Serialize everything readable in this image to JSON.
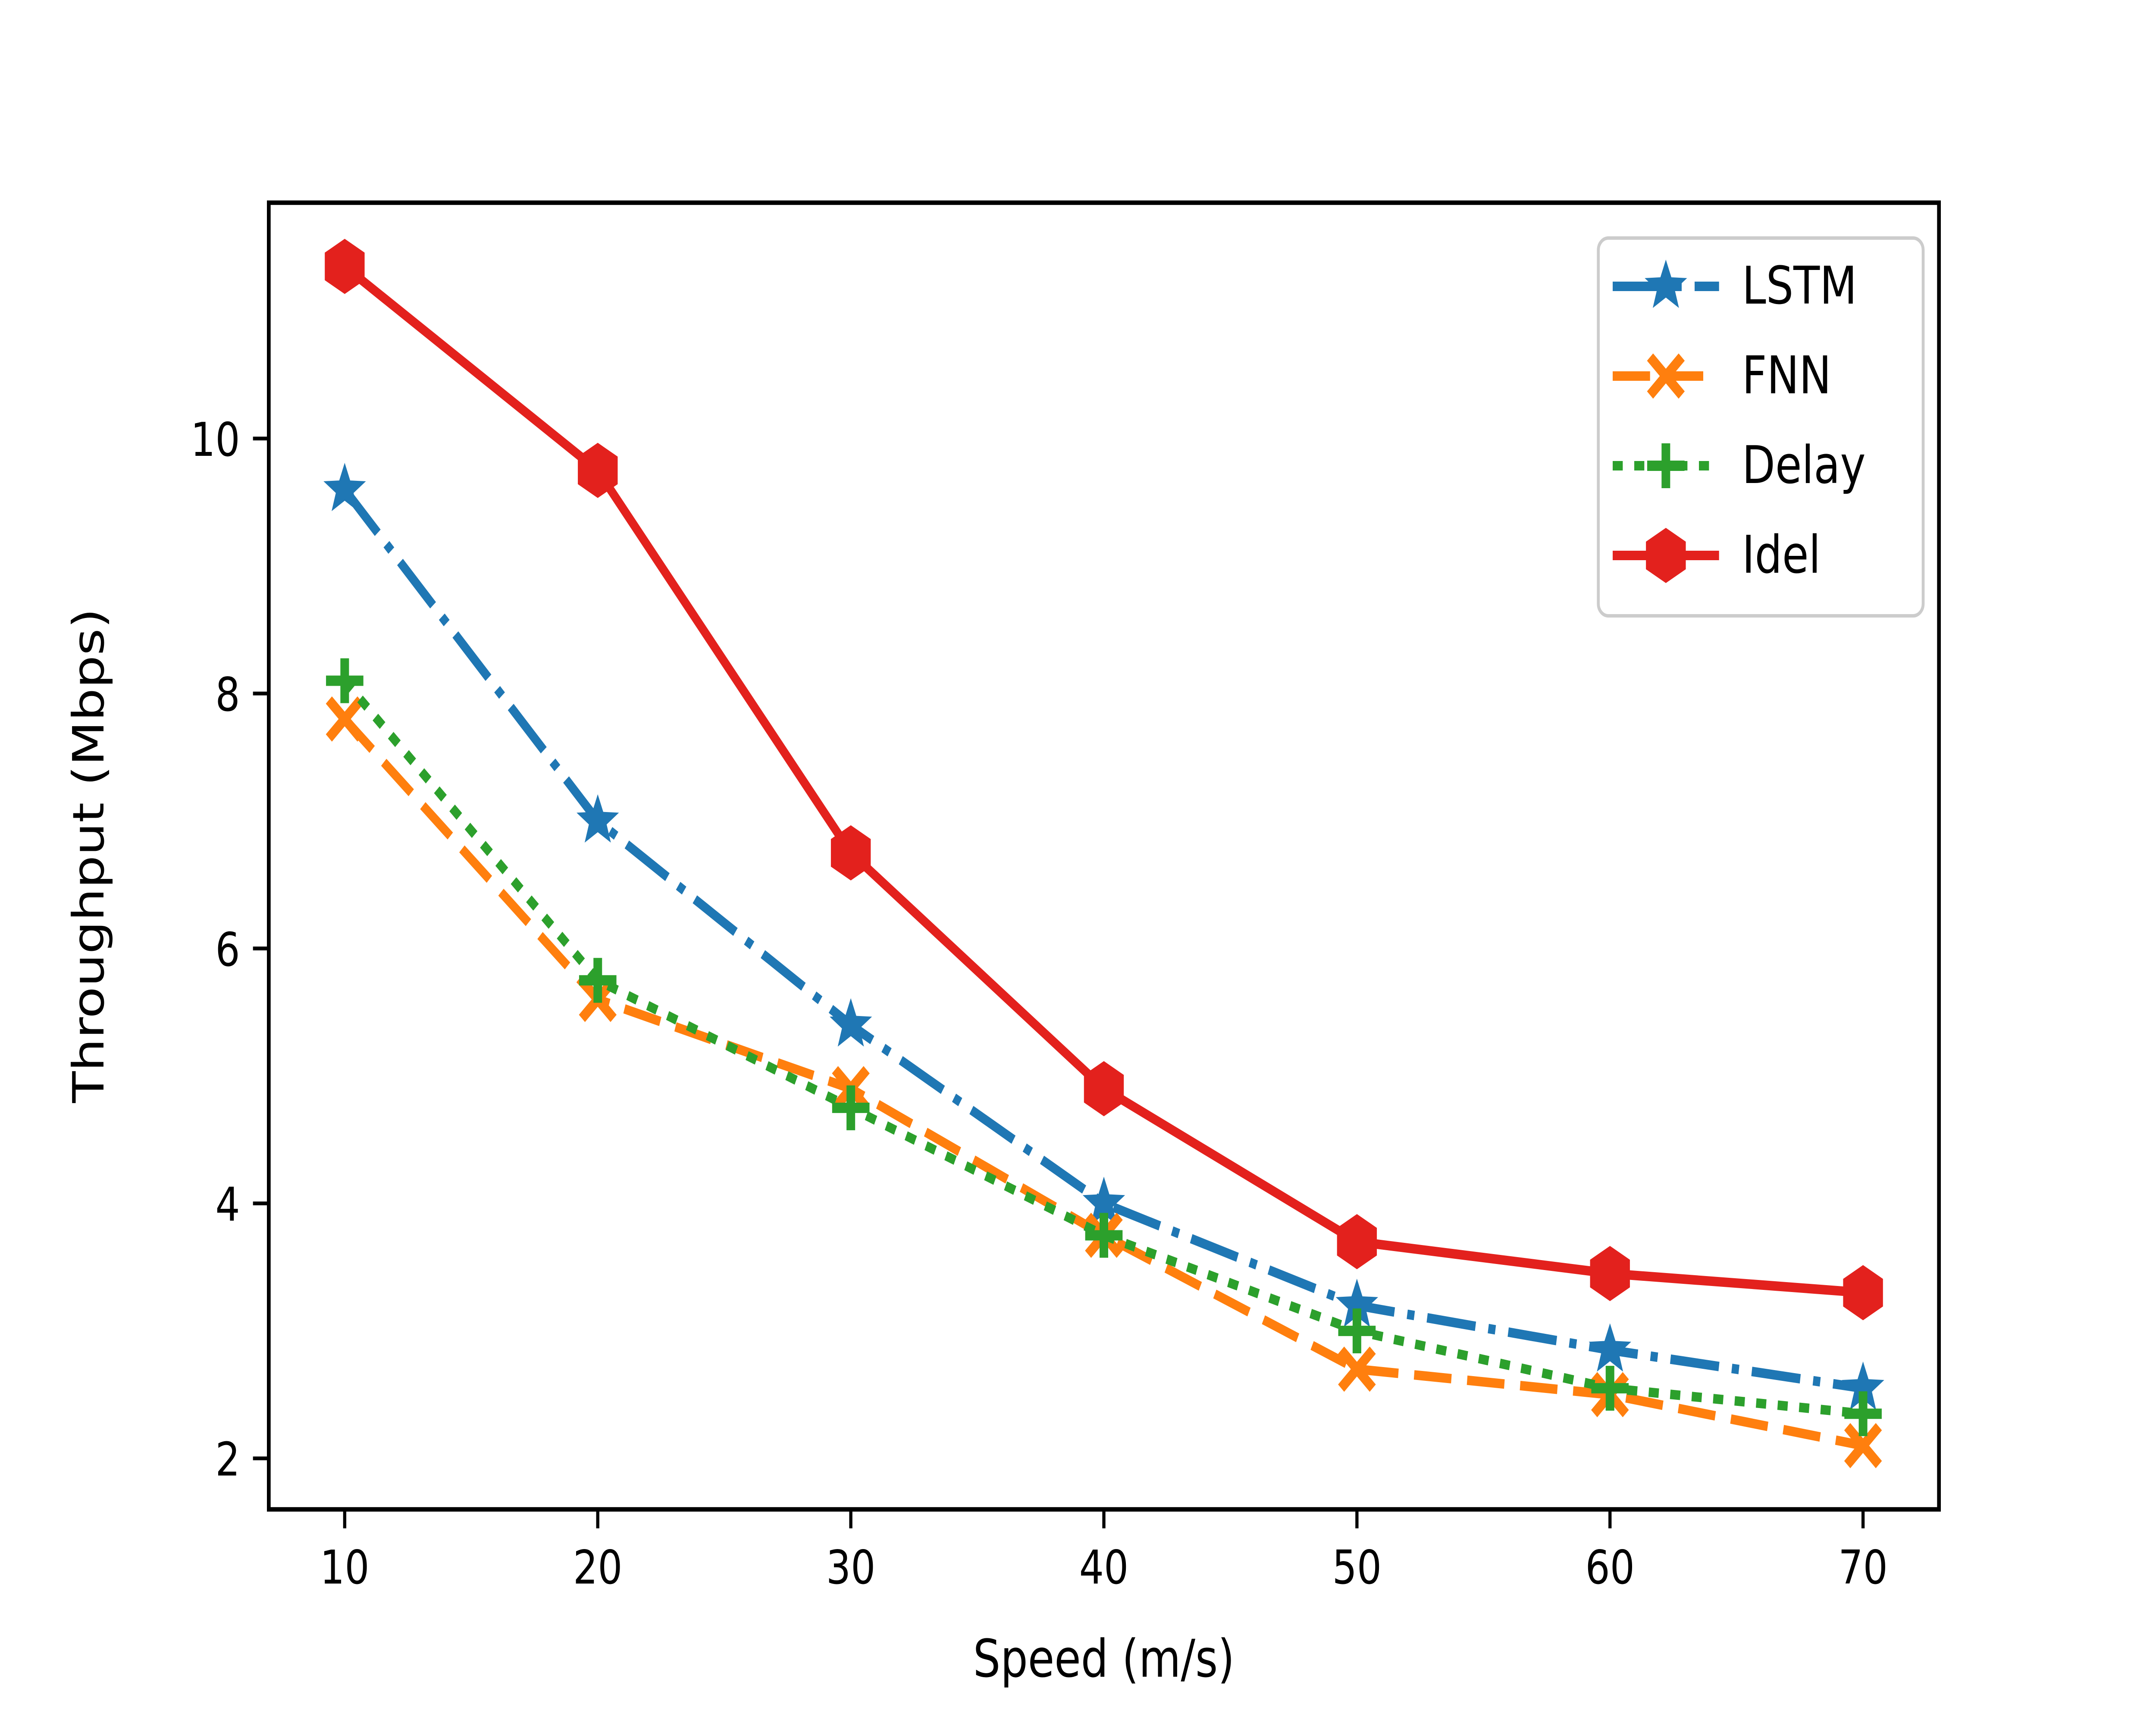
{
  "chart_data": {
    "type": "line",
    "title": "",
    "xlabel": "Speed (m/s)",
    "ylabel": "Throughput (Mbps)",
    "x": [
      10,
      20,
      30,
      40,
      50,
      60,
      70
    ],
    "series": [
      {
        "name": "LSTM",
        "color": "#1f77b4",
        "linestyle": "dashdot",
        "marker": "star",
        "values": [
          9.6,
          7.0,
          5.4,
          4.0,
          3.2,
          2.85,
          2.55
        ]
      },
      {
        "name": "FNN",
        "color": "#ff7f0e",
        "linestyle": "dashed",
        "marker": "x",
        "values": [
          7.8,
          5.6,
          4.9,
          3.75,
          2.7,
          2.5,
          2.1
        ]
      },
      {
        "name": "Delay",
        "color": "#2ca02c",
        "linestyle": "dotted",
        "marker": "plus",
        "values": [
          8.1,
          5.75,
          4.75,
          3.75,
          3.0,
          2.55,
          2.35
        ]
      },
      {
        "name": "Idel",
        "color": "#e3211d",
        "linestyle": "solid",
        "marker": "hexagon",
        "values": [
          11.35,
          9.75,
          6.75,
          4.9,
          3.7,
          3.45,
          3.3
        ]
      }
    ],
    "xticks": [
      10,
      20,
      30,
      40,
      50,
      60,
      70
    ],
    "yticks": [
      2,
      4,
      6,
      8,
      10
    ],
    "xlim": [
      7,
      73
    ],
    "ylim": [
      1.6,
      11.85
    ],
    "grid": false,
    "legend_position": "upper right",
    "axis_color": "#000000",
    "background_color": "#ffffff",
    "legend_frame_color": "#cccccc"
  }
}
